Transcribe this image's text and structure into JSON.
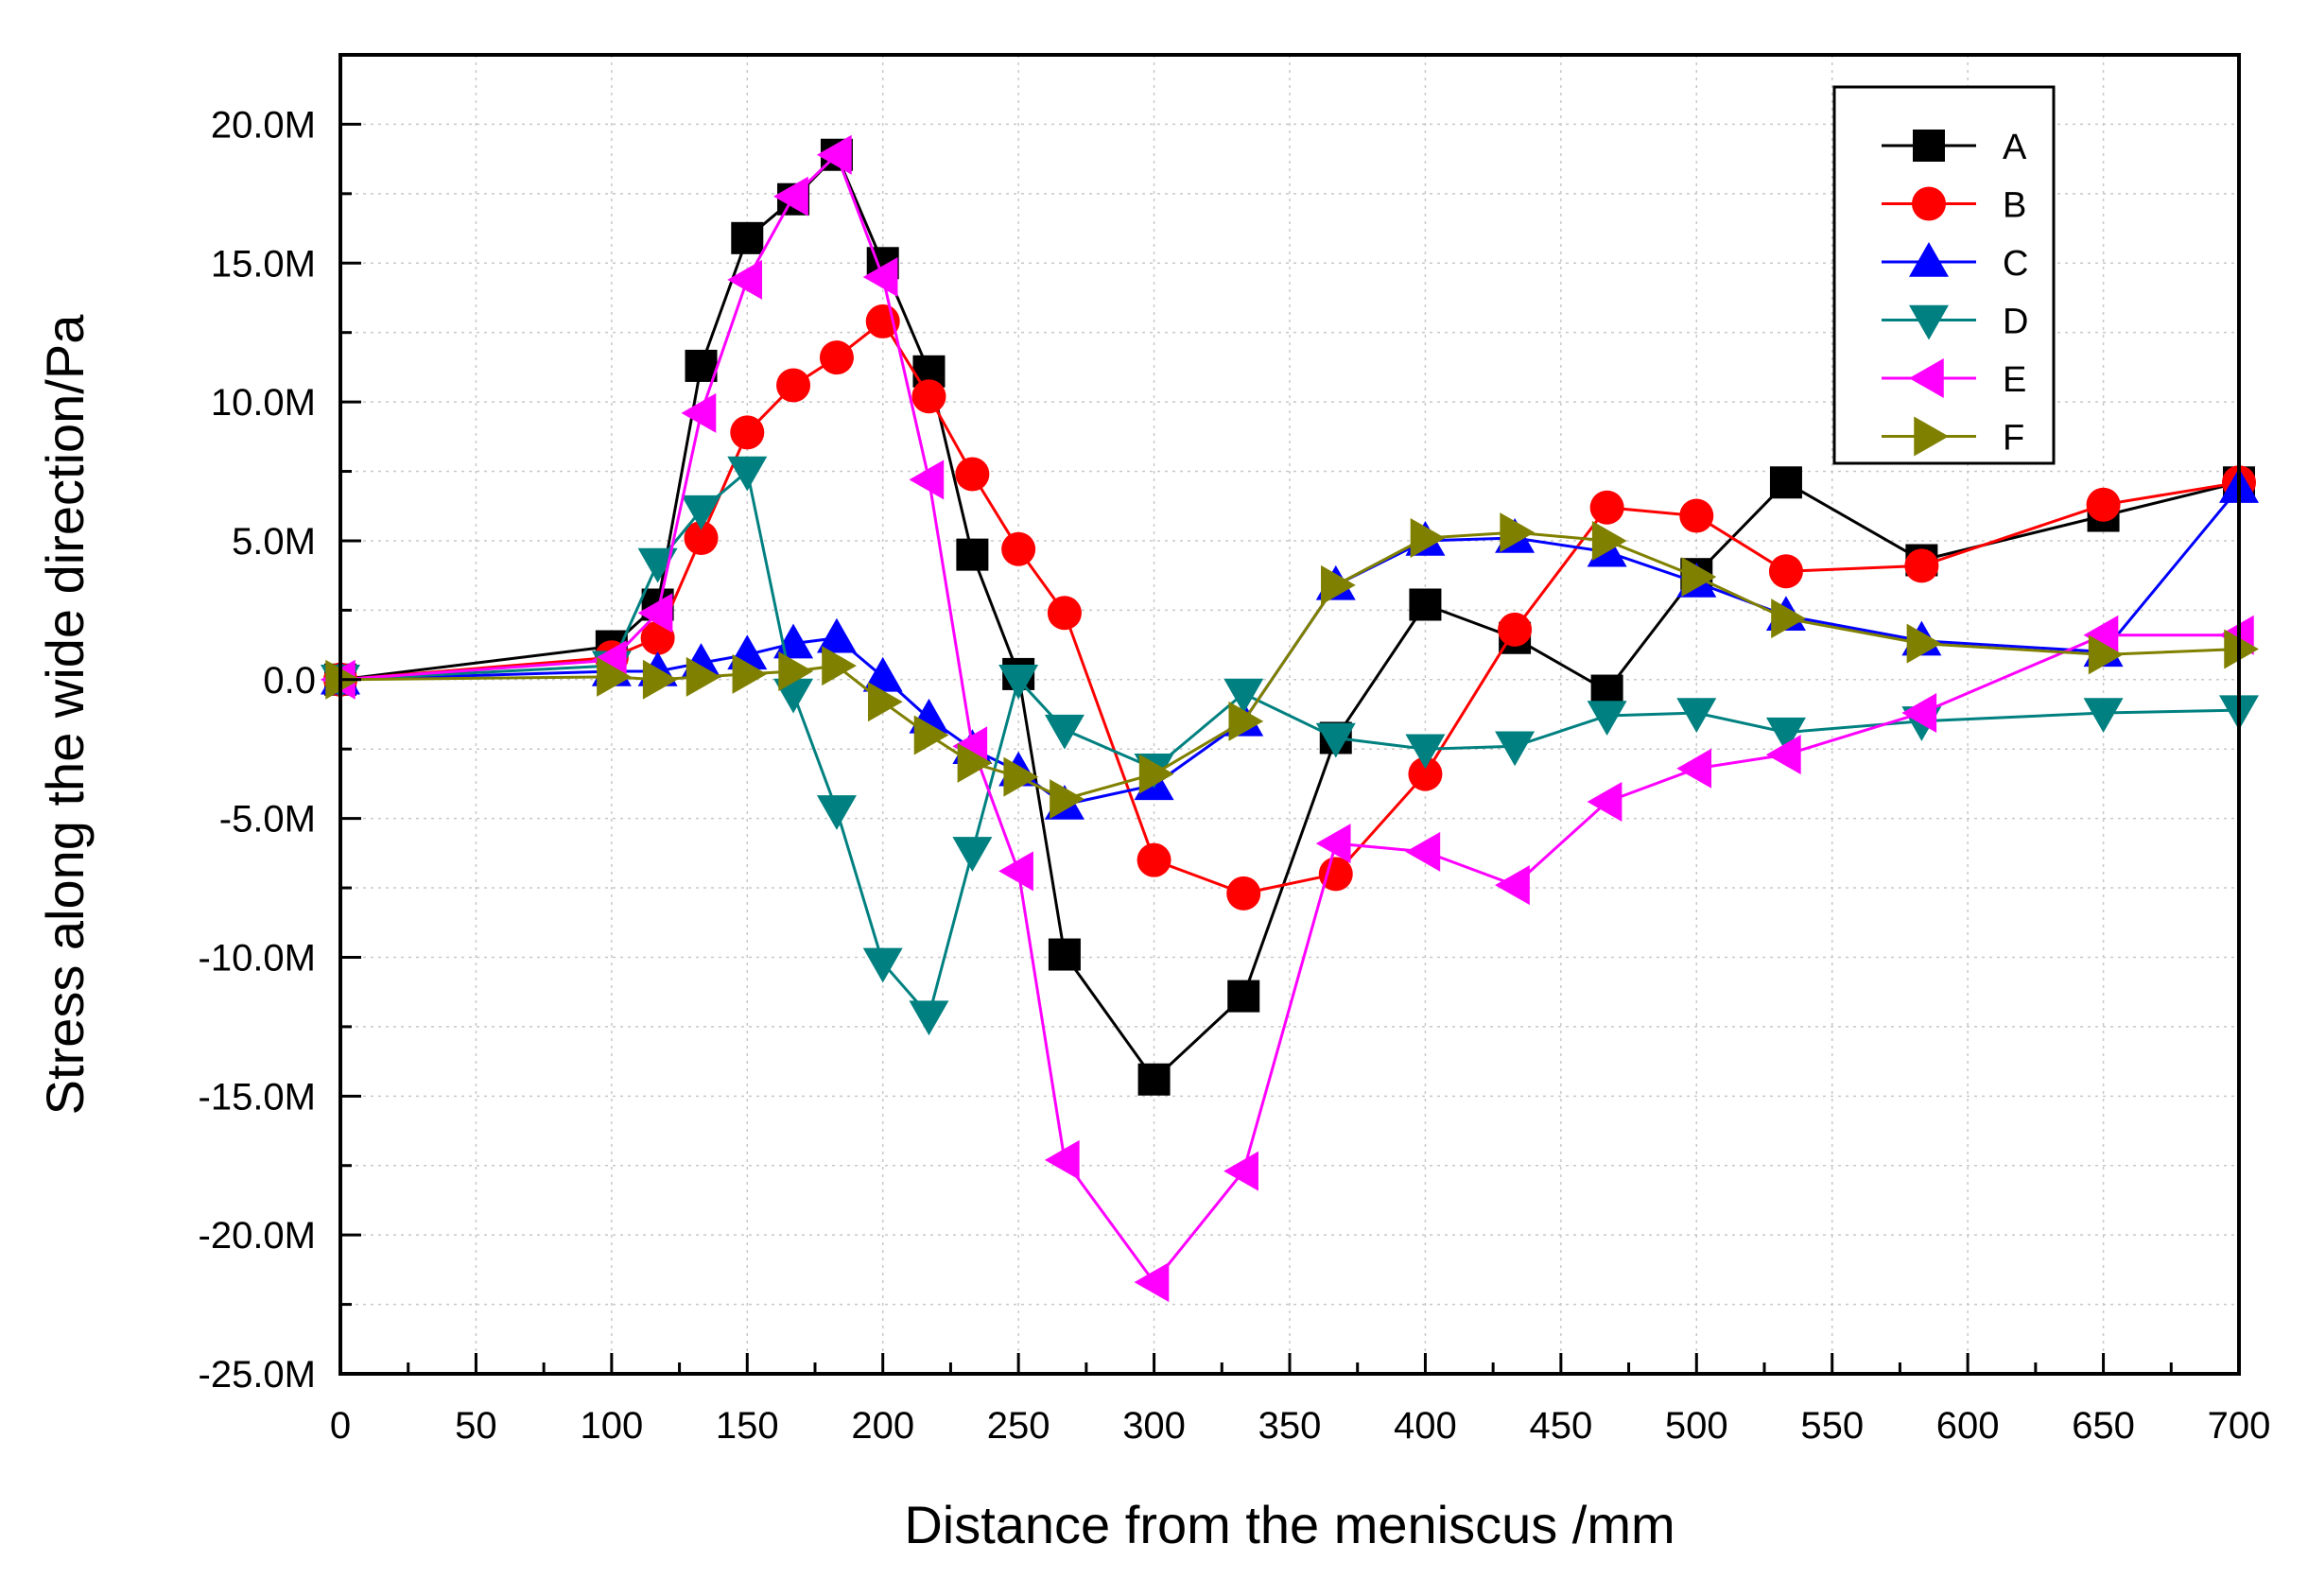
{
  "chart_data": {
    "type": "line",
    "title": "",
    "xlabel": "Distance from the meniscus /mm",
    "ylabel": "Stress along the wide direction/Pa",
    "xlim": [
      0,
      700
    ],
    "ylim": [
      -25000000,
      22500000
    ],
    "xticks": [
      0,
      50,
      100,
      150,
      200,
      250,
      300,
      350,
      400,
      450,
      500,
      550,
      600,
      650,
      700
    ],
    "xtick_labels": [
      "0",
      "50",
      "100",
      "150",
      "200",
      "250",
      "300",
      "350",
      "400",
      "450",
      "500",
      "550",
      "600",
      "650",
      "700"
    ],
    "yticks": [
      -25000000,
      -20000000,
      -15000000,
      -10000000,
      -5000000,
      0,
      5000000,
      10000000,
      15000000,
      20000000
    ],
    "ytick_labels": [
      "-25.0M",
      "-20.0M",
      "-15.0M",
      "-10.0M",
      "-5.0M",
      "0.0",
      "5.0M",
      "10.0M",
      "15.0M",
      "20.0M"
    ],
    "grid": true,
    "legend_position": "top-right",
    "series": [
      {
        "name": "A",
        "color": "#000000",
        "marker": "square",
        "points": [
          [
            0,
            0
          ],
          [
            100,
            1200000
          ],
          [
            117,
            2700000
          ],
          [
            133,
            11300000
          ],
          [
            150,
            15900000
          ],
          [
            167,
            17300000
          ],
          [
            183,
            18900000
          ],
          [
            200,
            15000000
          ],
          [
            217,
            11100000
          ],
          [
            233,
            4500000
          ],
          [
            250,
            200000
          ],
          [
            267,
            -9900000
          ],
          [
            300,
            -14400000
          ],
          [
            333,
            -11400000
          ],
          [
            367,
            -2100000
          ],
          [
            400,
            2700000
          ],
          [
            433,
            1500000
          ],
          [
            467,
            -400000
          ],
          [
            500,
            3800000
          ],
          [
            533,
            7100000
          ],
          [
            583,
            4300000
          ],
          [
            650,
            5900000
          ],
          [
            700,
            7100000
          ]
        ]
      },
      {
        "name": "B",
        "color": "#ff0000",
        "marker": "circle",
        "points": [
          [
            0,
            0
          ],
          [
            100,
            800000
          ],
          [
            117,
            1500000
          ],
          [
            133,
            5100000
          ],
          [
            150,
            8900000
          ],
          [
            167,
            10600000
          ],
          [
            183,
            11600000
          ],
          [
            200,
            12900000
          ],
          [
            217,
            10200000
          ],
          [
            233,
            7400000
          ],
          [
            250,
            4700000
          ],
          [
            267,
            2400000
          ],
          [
            300,
            -6500000
          ],
          [
            333,
            -7700000
          ],
          [
            367,
            -7000000
          ],
          [
            400,
            -3400000
          ],
          [
            433,
            1800000
          ],
          [
            467,
            6200000
          ],
          [
            500,
            5900000
          ],
          [
            533,
            3900000
          ],
          [
            583,
            4100000
          ],
          [
            650,
            6300000
          ],
          [
            700,
            7100000
          ]
        ]
      },
      {
        "name": "C",
        "color": "#0000ff",
        "marker": "triangle-up",
        "points": [
          [
            0,
            0
          ],
          [
            100,
            300000
          ],
          [
            117,
            300000
          ],
          [
            133,
            600000
          ],
          [
            150,
            900000
          ],
          [
            167,
            1300000
          ],
          [
            183,
            1500000
          ],
          [
            200,
            100000
          ],
          [
            217,
            -1400000
          ],
          [
            233,
            -2500000
          ],
          [
            250,
            -3300000
          ],
          [
            267,
            -4500000
          ],
          [
            300,
            -3800000
          ],
          [
            333,
            -1500000
          ],
          [
            367,
            3400000
          ],
          [
            400,
            5000000
          ],
          [
            433,
            5100000
          ],
          [
            467,
            4600000
          ],
          [
            500,
            3500000
          ],
          [
            533,
            2300000
          ],
          [
            583,
            1400000
          ],
          [
            650,
            1000000
          ],
          [
            700,
            6900000
          ]
        ]
      },
      {
        "name": "D",
        "color": "#008080",
        "marker": "triangle-down",
        "points": [
          [
            0,
            0
          ],
          [
            100,
            500000
          ],
          [
            117,
            4200000
          ],
          [
            133,
            6100000
          ],
          [
            150,
            7500000
          ],
          [
            167,
            -500000
          ],
          [
            183,
            -4700000
          ],
          [
            200,
            -10200000
          ],
          [
            217,
            -12100000
          ],
          [
            233,
            -6200000
          ],
          [
            250,
            0
          ],
          [
            267,
            -1800000
          ],
          [
            300,
            -3200000
          ],
          [
            333,
            -500000
          ],
          [
            367,
            -2100000
          ],
          [
            400,
            -2500000
          ],
          [
            433,
            -2400000
          ],
          [
            467,
            -1300000
          ],
          [
            500,
            -1200000
          ],
          [
            533,
            -1900000
          ],
          [
            583,
            -1500000
          ],
          [
            650,
            -1200000
          ],
          [
            700,
            -1100000
          ]
        ]
      },
      {
        "name": "E",
        "color": "#ff00ff",
        "marker": "triangle-left",
        "points": [
          [
            0,
            0
          ],
          [
            100,
            700000
          ],
          [
            117,
            2400000
          ],
          [
            133,
            9600000
          ],
          [
            150,
            14400000
          ],
          [
            167,
            17400000
          ],
          [
            183,
            18900000
          ],
          [
            200,
            14500000
          ],
          [
            217,
            7200000
          ],
          [
            233,
            -2400000
          ],
          [
            250,
            -6900000
          ],
          [
            267,
            -17300000
          ],
          [
            300,
            -21700000
          ],
          [
            333,
            -17700000
          ],
          [
            367,
            -5900000
          ],
          [
            400,
            -6200000
          ],
          [
            433,
            -7400000
          ],
          [
            467,
            -4400000
          ],
          [
            500,
            -3200000
          ],
          [
            533,
            -2700000
          ],
          [
            583,
            -1200000
          ],
          [
            650,
            1600000
          ],
          [
            700,
            1600000
          ]
        ]
      },
      {
        "name": "F",
        "color": "#808000",
        "marker": "triangle-right",
        "points": [
          [
            0,
            0
          ],
          [
            100,
            100000
          ],
          [
            117,
            0
          ],
          [
            133,
            100000
          ],
          [
            150,
            200000
          ],
          [
            167,
            300000
          ],
          [
            183,
            500000
          ],
          [
            200,
            -800000
          ],
          [
            217,
            -2000000
          ],
          [
            233,
            -3000000
          ],
          [
            250,
            -3500000
          ],
          [
            267,
            -4300000
          ],
          [
            300,
            -3400000
          ],
          [
            333,
            -1500000
          ],
          [
            367,
            3400000
          ],
          [
            400,
            5100000
          ],
          [
            433,
            5300000
          ],
          [
            467,
            5000000
          ],
          [
            500,
            3700000
          ],
          [
            533,
            2200000
          ],
          [
            583,
            1300000
          ],
          [
            650,
            900000
          ],
          [
            700,
            1100000
          ]
        ]
      }
    ]
  }
}
